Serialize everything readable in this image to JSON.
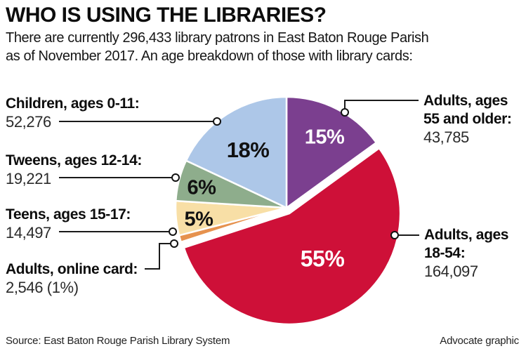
{
  "header": {
    "title": "WHO IS USING THE LIBRARIES?",
    "subtitle_line1": "There are currently 296,433 library patrons in East Baton Rouge Parish",
    "subtitle_line2": "as of November 2017. An age breakdown of those with library cards:"
  },
  "chart_data": {
    "type": "pie",
    "title": "WHO IS USING THE LIBRARIES?",
    "total_patrons": "296,433",
    "as_of": "November 2017",
    "direction": "clockwise",
    "start_angle_deg": 0,
    "legend_position": "callouts-around-pie",
    "slices": [
      {
        "id": "adults-55-older",
        "label": "Adults, ages 55 and older",
        "value": 43785,
        "pct": 15,
        "pct_label": "15%",
        "color": "#7b3f8f",
        "pct_text": "light"
      },
      {
        "id": "adults-18-54",
        "label": "Adults, ages 18-54",
        "value": 164097,
        "pct": 55,
        "pct_label": "55%",
        "color": "#ce1038",
        "pct_text": "light",
        "exploded": true
      },
      {
        "id": "adults-online",
        "label": "Adults, online card",
        "value": 2546,
        "pct": 1,
        "pct_label": "",
        "color": "#e6924e",
        "pct_text": "dark"
      },
      {
        "id": "teens-15-17",
        "label": "Teens, ages 15-17",
        "value": 14497,
        "pct": 5,
        "pct_label": "5%",
        "color": "#f8dfa6",
        "pct_text": "dark"
      },
      {
        "id": "tweens-12-14",
        "label": "Tweens, ages 12-14",
        "value": 19221,
        "pct": 6,
        "pct_label": "6%",
        "color": "#8ead8c",
        "pct_text": "dark"
      },
      {
        "id": "children-0-11",
        "label": "Children, ages 0-11",
        "value": 52276,
        "pct": 18,
        "pct_label": "18%",
        "color": "#adc7e8",
        "pct_text": "dark"
      }
    ]
  },
  "callouts": {
    "children": {
      "title": "Children, ages 0-11:",
      "value": "52,276"
    },
    "tweens": {
      "title": "Tweens, ages 12-14:",
      "value": "19,221"
    },
    "teens": {
      "title": "Teens, ages 15-17:",
      "value": "14,497"
    },
    "online": {
      "title": "Adults, online card:",
      "value": "2,546 (1%)"
    },
    "adults55": {
      "title1": "Adults, ages",
      "title2": "55 and older:",
      "value": "43,785"
    },
    "adults18": {
      "title1": "Adults, ages",
      "title2": "18-54:",
      "value": "164,097"
    }
  },
  "footer": {
    "source": "Source: East Baton Rouge Parish Library System",
    "credit": "Advocate graphic"
  },
  "style": {
    "leader_color": "#1a1a1a",
    "slice_stroke": "#ffffff"
  }
}
